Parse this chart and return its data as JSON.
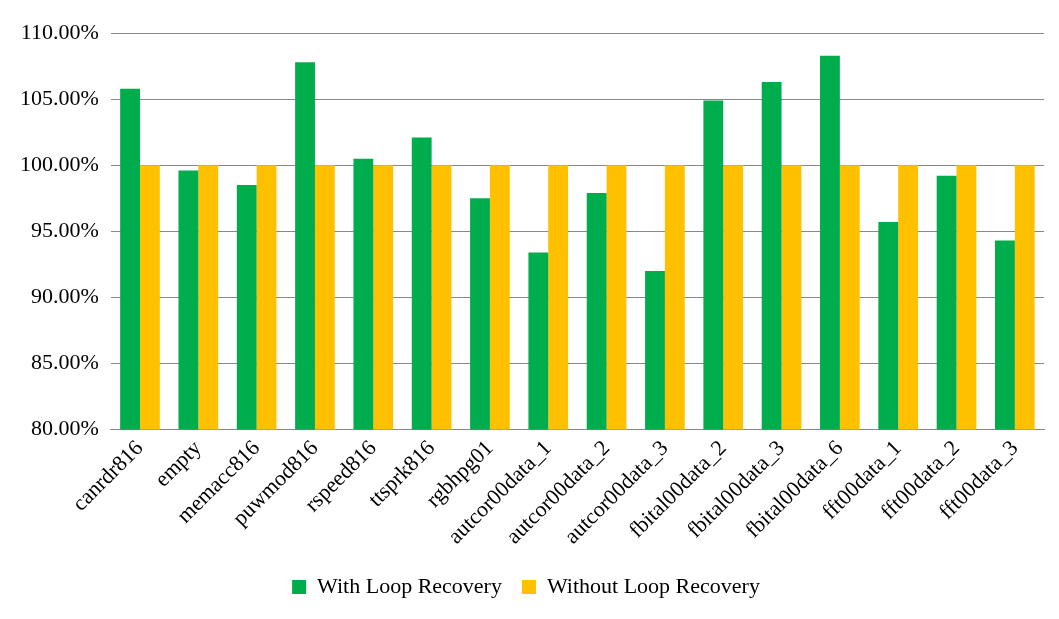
{
  "chart_data": {
    "type": "bar",
    "categories": [
      "canrdr816",
      "empty",
      "memacc816",
      "puwmod816",
      "rspeed816",
      "ttsprk816",
      "rgbhpg01",
      "autcor00data_1",
      "autcor00data_2",
      "autcor00data_3",
      "fbital00data_2",
      "fbital00data_3",
      "fbital00data_6",
      "fft00data_1",
      "fft00data_2",
      "fft00data_3"
    ],
    "series": [
      {
        "name": "With Loop Recovery",
        "color": "#00ad4d",
        "values": [
          105.8,
          99.6,
          98.5,
          107.8,
          100.5,
          102.1,
          97.5,
          93.4,
          97.9,
          92.0,
          104.9,
          106.3,
          108.3,
          95.7,
          99.2,
          94.3
        ]
      },
      {
        "name": "Without Loop Recovery",
        "color": "#ffc000",
        "values": [
          100,
          100,
          100,
          100,
          100,
          100,
          100,
          100,
          100,
          100,
          100,
          100,
          100,
          100,
          100,
          100
        ]
      }
    ],
    "ylim": [
      80,
      110
    ],
    "yticks": [
      {
        "value": 80,
        "label": "80.00%"
      },
      {
        "value": 85,
        "label": "85.00%"
      },
      {
        "value": 90,
        "label": "90.00%"
      },
      {
        "value": 95,
        "label": "95.00%"
      },
      {
        "value": 100,
        "label": "100.00%"
      },
      {
        "value": 105,
        "label": "105.00%"
      },
      {
        "value": 110,
        "label": "110.00%"
      }
    ],
    "grid": "y",
    "legend": "bottom"
  }
}
